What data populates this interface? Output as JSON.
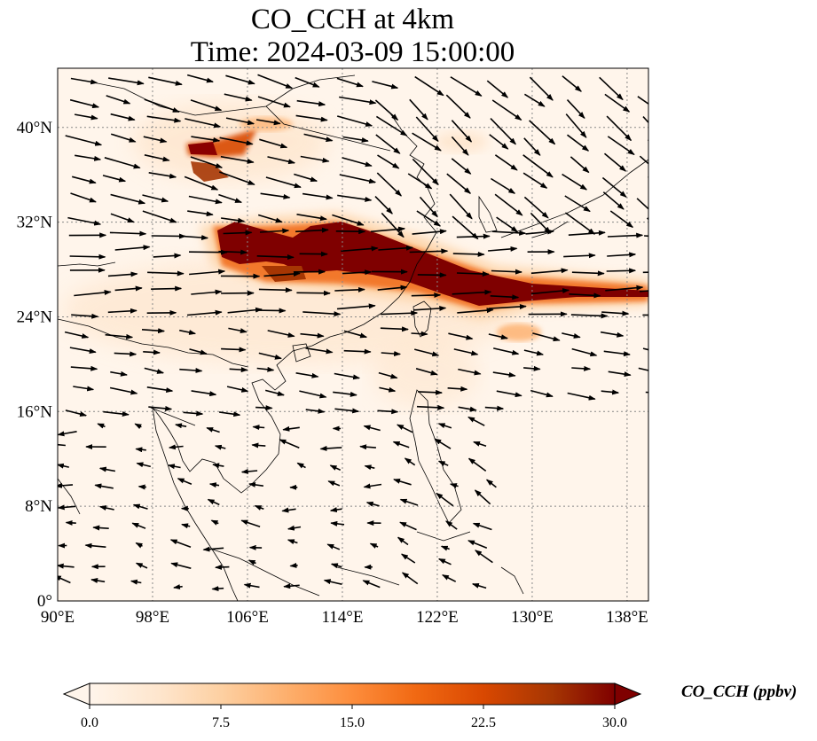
{
  "title_line1": "CO_CCH at 4km",
  "title_line2": "Time: 2024-03-09 15:00:00",
  "map": {
    "variable": "CO_CCH",
    "level": "4km",
    "projection": "PlateCarree",
    "lon_range": [
      90,
      139.8
    ],
    "lat_range": [
      0,
      45
    ],
    "gridlines": "dotted",
    "lat_ticks": [
      {
        "value": 40,
        "label": "40°N"
      },
      {
        "value": 32,
        "label": "32°N"
      },
      {
        "value": 24,
        "label": "24°N"
      },
      {
        "value": 16,
        "label": "16°N"
      },
      {
        "value": 8,
        "label": "8°N"
      },
      {
        "value": 0,
        "label": "0°"
      }
    ],
    "lon_ticks": [
      {
        "value": 90,
        "label": "90°E"
      },
      {
        "value": 98,
        "label": "98°E"
      },
      {
        "value": 106,
        "label": "106°E"
      },
      {
        "value": 114,
        "label": "114°E"
      },
      {
        "value": 122,
        "label": "122°E"
      },
      {
        "value": 130,
        "label": "130°E"
      },
      {
        "value": 138,
        "label": "138°E"
      }
    ],
    "plume_colors": [
      "#fff5eb",
      "#fdd0a2",
      "#fd8d3c",
      "#d94801",
      "#7f0000"
    ],
    "wind_arrow_color": "#000000",
    "coastline_color": "#000000"
  },
  "colorbar": {
    "label": "CO_CCH (ppbv)",
    "min": 0.0,
    "max": 30.0,
    "extend": "both",
    "ticks": [
      "0.0",
      "7.5",
      "15.0",
      "22.5",
      "30.0"
    ],
    "colormap": "OrRd-like",
    "colors": [
      "#fff5eb",
      "#fee6ce",
      "#fdd0a2",
      "#fdae6b",
      "#fd8d3c",
      "#f16913",
      "#d94801",
      "#a63603",
      "#7f0000"
    ]
  }
}
